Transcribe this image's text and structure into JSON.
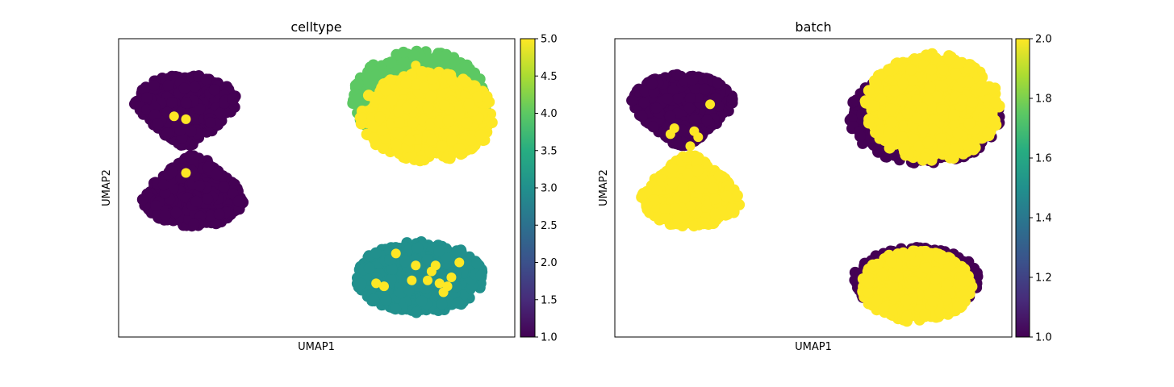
{
  "chart_data": [
    {
      "type": "scatter",
      "title": "celltype",
      "xlabel": "UMAP1",
      "ylabel": "UMAP2",
      "colorbar": {
        "min": 1.0,
        "max": 5.0,
        "ticks": [
          "1.0",
          "1.5",
          "2.0",
          "2.5",
          "3.0",
          "3.5",
          "4.0",
          "4.5",
          "5.0"
        ],
        "colormap": "viridis"
      },
      "clusters": [
        {
          "name": "top-left lobe",
          "cx": 0.17,
          "cy": 0.78,
          "rx": 0.13,
          "ry": 0.1,
          "value": 1,
          "shape": "upper-hourglass"
        },
        {
          "name": "bottom-left lobe",
          "cx": 0.19,
          "cy": 0.47,
          "rx": 0.13,
          "ry": 0.1,
          "value": 1,
          "shape": "lower-hourglass"
        },
        {
          "name": "top-right outer",
          "cx": 0.76,
          "cy": 0.8,
          "rx": 0.17,
          "ry": 0.16,
          "value": 4
        },
        {
          "name": "top-right inner",
          "cx": 0.78,
          "cy": 0.74,
          "rx": 0.17,
          "ry": 0.15,
          "value": 5
        },
        {
          "name": "bottom-right",
          "cx": 0.76,
          "cy": 0.2,
          "rx": 0.16,
          "ry": 0.12,
          "value": 3
        }
      ],
      "highlight_points": [
        {
          "x": 0.14,
          "y": 0.74,
          "value": 5
        },
        {
          "x": 0.17,
          "y": 0.73,
          "value": 5
        },
        {
          "x": 0.17,
          "y": 0.55,
          "value": 5
        },
        {
          "x": 0.7,
          "y": 0.28,
          "value": 5
        },
        {
          "x": 0.75,
          "y": 0.24,
          "value": 5
        },
        {
          "x": 0.8,
          "y": 0.24,
          "value": 5
        },
        {
          "x": 0.86,
          "y": 0.25,
          "value": 5
        },
        {
          "x": 0.84,
          "y": 0.2,
          "value": 5
        },
        {
          "x": 0.81,
          "y": 0.18,
          "value": 5
        },
        {
          "x": 0.78,
          "y": 0.19,
          "value": 5
        },
        {
          "x": 0.74,
          "y": 0.19,
          "value": 5
        },
        {
          "x": 0.83,
          "y": 0.17,
          "value": 5
        },
        {
          "x": 0.82,
          "y": 0.15,
          "value": 5
        },
        {
          "x": 0.65,
          "y": 0.18,
          "value": 5
        },
        {
          "x": 0.67,
          "y": 0.17,
          "value": 5
        },
        {
          "x": 0.79,
          "y": 0.22,
          "value": 5
        },
        {
          "x": 0.75,
          "y": 0.91,
          "value": 5
        }
      ]
    },
    {
      "type": "scatter",
      "title": "batch",
      "xlabel": "UMAP1",
      "ylabel": "UMAP2",
      "colorbar": {
        "min": 1.0,
        "max": 2.0,
        "ticks": [
          "1.0",
          "1.2",
          "1.4",
          "1.6",
          "1.8",
          "2.0"
        ],
        "colormap": "viridis"
      },
      "clusters": [
        {
          "name": "top-left lobe",
          "cx": 0.17,
          "cy": 0.78,
          "rx": 0.13,
          "ry": 0.1,
          "value": 1,
          "shape": "upper-hourglass"
        },
        {
          "name": "bottom-left lobe",
          "cx": 0.19,
          "cy": 0.47,
          "rx": 0.13,
          "ry": 0.1,
          "value": 2,
          "shape": "lower-hourglass"
        },
        {
          "name": "top-right outer",
          "cx": 0.78,
          "cy": 0.74,
          "rx": 0.19,
          "ry": 0.16,
          "value": 1
        },
        {
          "name": "top-right inner",
          "cx": 0.8,
          "cy": 0.77,
          "rx": 0.17,
          "ry": 0.18,
          "value": 2
        },
        {
          "name": "bottom-right outer",
          "cx": 0.76,
          "cy": 0.19,
          "rx": 0.16,
          "ry": 0.11,
          "value": 1
        },
        {
          "name": "bottom-right inner",
          "cx": 0.76,
          "cy": 0.17,
          "rx": 0.14,
          "ry": 0.12,
          "value": 2
        }
      ],
      "highlight_points": [
        {
          "x": 0.24,
          "y": 0.78,
          "value": 2
        },
        {
          "x": 0.15,
          "y": 0.7,
          "value": 2
        },
        {
          "x": 0.14,
          "y": 0.68,
          "value": 2
        },
        {
          "x": 0.2,
          "y": 0.69,
          "value": 2
        },
        {
          "x": 0.21,
          "y": 0.67,
          "value": 2
        },
        {
          "x": 0.19,
          "y": 0.64,
          "value": 2
        },
        {
          "x": 0.18,
          "y": 0.6,
          "value": 2
        }
      ]
    }
  ]
}
